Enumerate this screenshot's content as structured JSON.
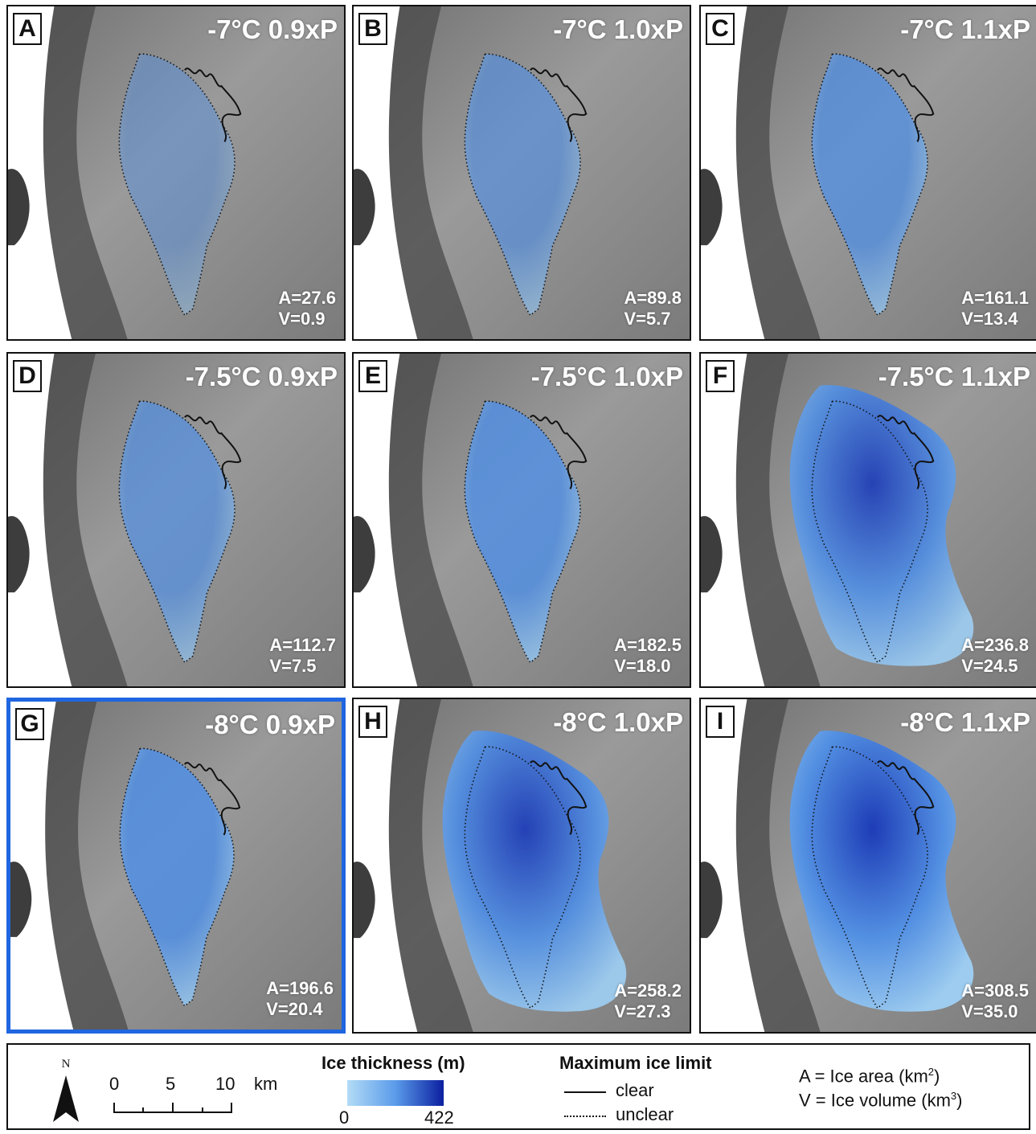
{
  "panels": [
    {
      "letter": "A",
      "title": "-7°C 0.9xP",
      "area": "A=27.6",
      "volume": "V=0.9",
      "ice_level": 0.15,
      "selected": false
    },
    {
      "letter": "B",
      "title": "-7°C 1.0xP",
      "area": "A=89.8",
      "volume": "V=5.7",
      "ice_level": 0.45,
      "selected": false
    },
    {
      "letter": "C",
      "title": "-7°C 1.1xP",
      "area": "A=161.1",
      "volume": "V=13.4",
      "ice_level": 0.65,
      "selected": false
    },
    {
      "letter": "D",
      "title": "-7.5°C 0.9xP",
      "area": "A=112.7",
      "volume": "V=7.5",
      "ice_level": 0.55,
      "selected": false
    },
    {
      "letter": "E",
      "title": "-7.5°C 1.0xP",
      "area": "A=182.5",
      "volume": "V=18.0",
      "ice_level": 0.75,
      "selected": false
    },
    {
      "letter": "F",
      "title": "-7.5°C 1.1xP",
      "area": "A=236.8",
      "volume": "V=24.5",
      "ice_level": 0.88,
      "selected": false
    },
    {
      "letter": "G",
      "title": "-8°C 0.9xP",
      "area": "A=196.6",
      "volume": "V=20.4",
      "ice_level": 0.8,
      "selected": true
    },
    {
      "letter": "H",
      "title": "-8°C 1.0xP",
      "area": "A=258.2",
      "volume": "V=27.3",
      "ice_level": 0.92,
      "selected": false
    },
    {
      "letter": "I",
      "title": "-8°C 1.1xP",
      "area": "A=308.5",
      "volume": "V=35.0",
      "ice_level": 1.0,
      "selected": false
    }
  ],
  "legend": {
    "north_label": "N",
    "scale": {
      "ticks": [
        "0",
        "5",
        "10"
      ],
      "unit": "km"
    },
    "colorbar": {
      "title": "Ice thickness (m)",
      "min": "0",
      "max": "422",
      "color_low": "#b3dcf6",
      "color_high": "#0b1fa0"
    },
    "ice_limit": {
      "title": "Maximum ice limit",
      "clear": "clear",
      "unclear": "unclear"
    },
    "definitions": {
      "area_prefix": "A = Ice area (km",
      "area_sup": "2",
      "area_suffix": ")",
      "volume_prefix": "V = Ice volume (km",
      "volume_sup": "3",
      "volume_suffix": ")"
    }
  },
  "colors": {
    "selected_border": "#1f66e0",
    "terrain": "#8a8a8a",
    "ice_light": "#9fd0f5",
    "ice_mid": "#4f8fe6",
    "ice_dark": "#1737b8"
  }
}
